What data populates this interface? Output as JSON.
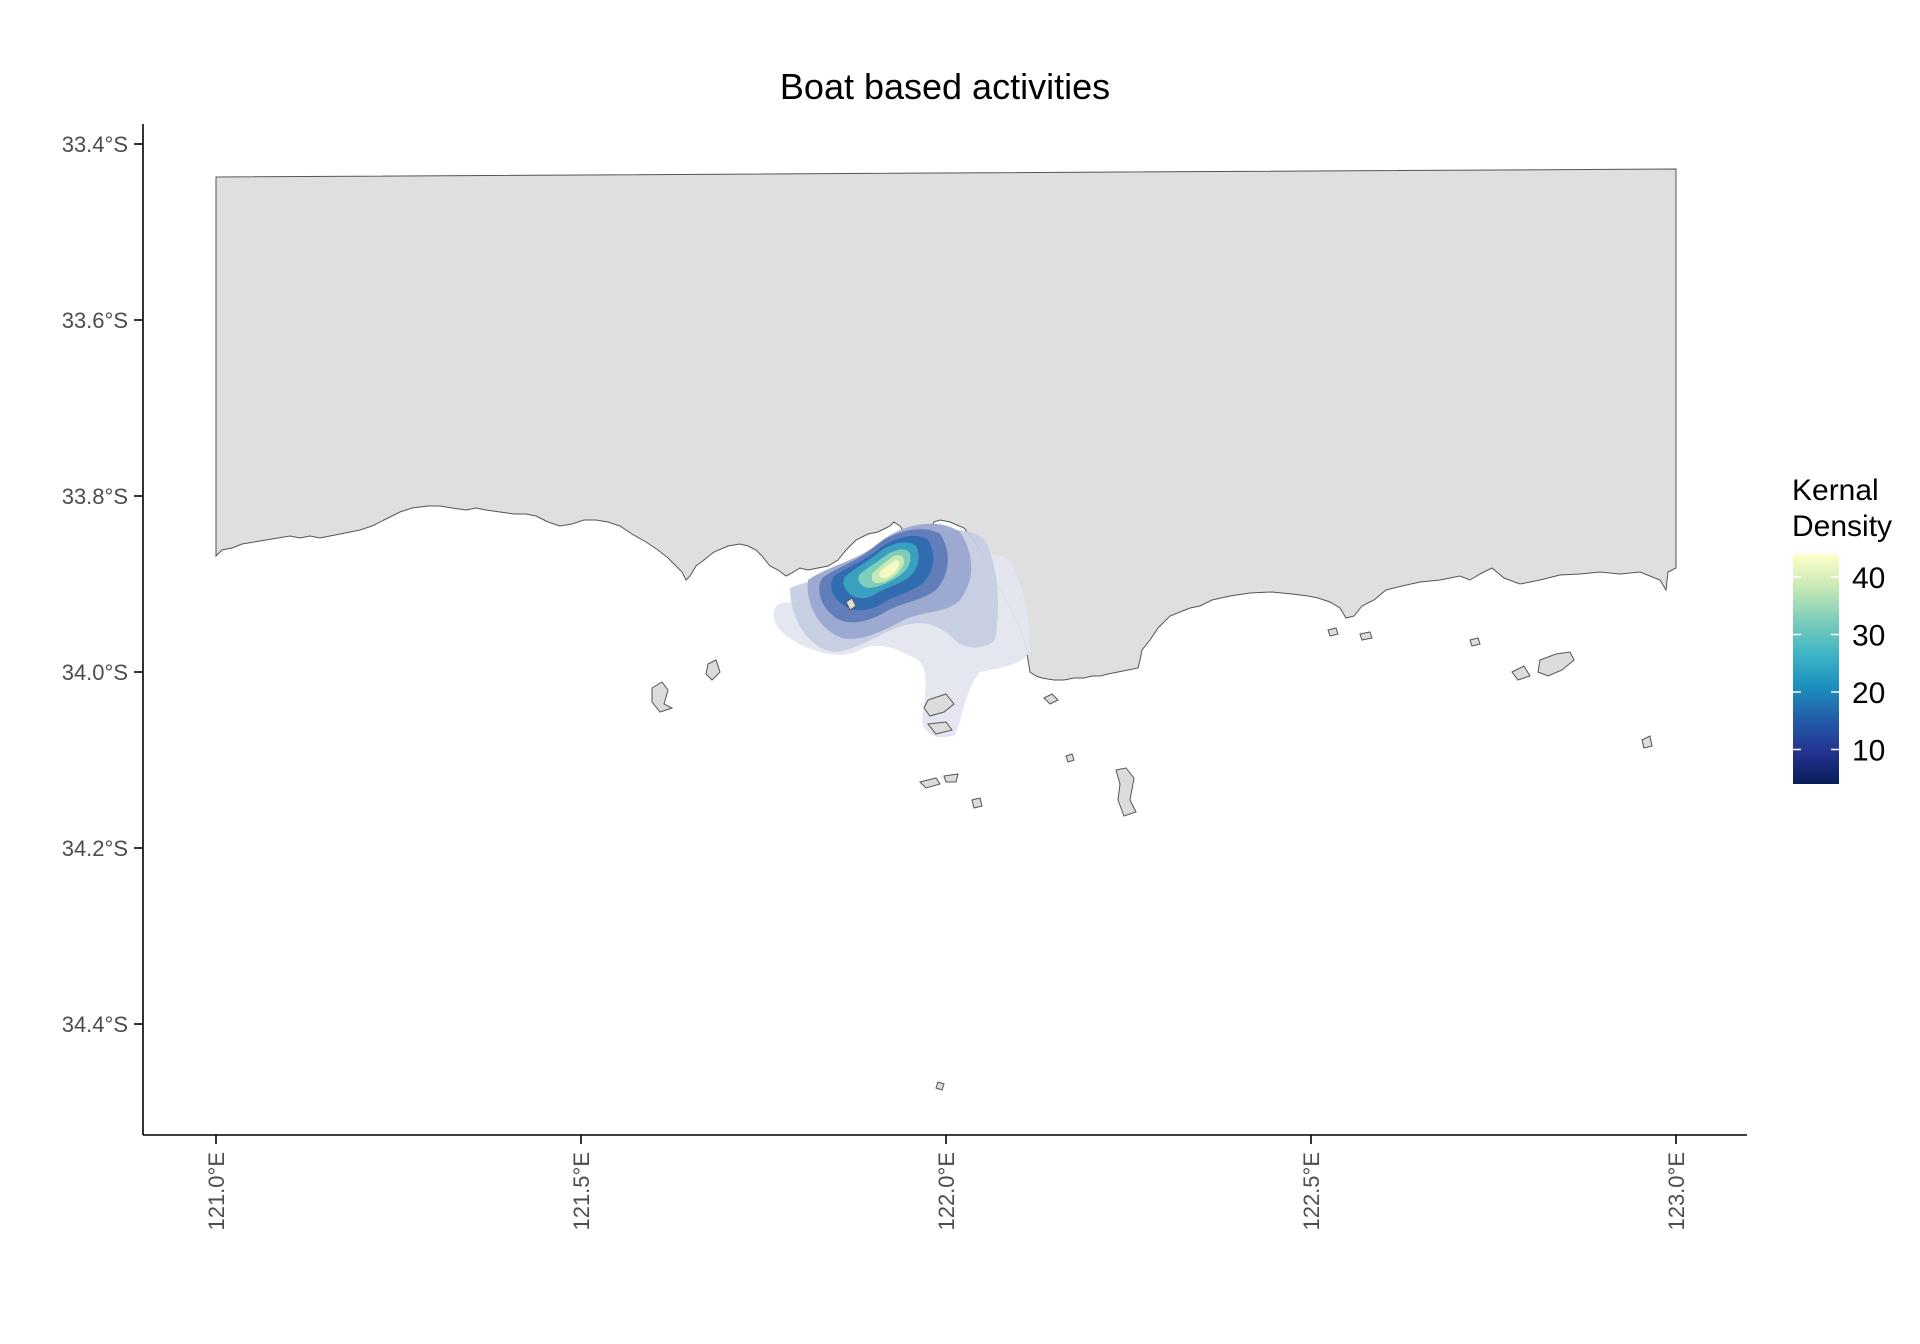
{
  "title": "Boat based activities",
  "map": {
    "land_color": "#dfdfdf",
    "coast_color": "#555555",
    "xlim": [
      121.0,
      123.0
    ],
    "ylim_south": [
      33.4,
      34.4
    ],
    "x_ticks": [
      {
        "value": 121.0,
        "label": "121.0°E"
      },
      {
        "value": 121.5,
        "label": "121.5°E"
      },
      {
        "value": 122.0,
        "label": "122.0°E"
      },
      {
        "value": 122.5,
        "label": "122.5°E"
      },
      {
        "value": 123.0,
        "label": "123.0°E"
      }
    ],
    "y_ticks": [
      {
        "value": 33.4,
        "label": "33.4°S"
      },
      {
        "value": 33.6,
        "label": "33.6°S"
      },
      {
        "value": 33.8,
        "label": "33.8°S"
      },
      {
        "value": 34.0,
        "label": "34.0°S"
      },
      {
        "value": 34.2,
        "label": "34.2°S"
      },
      {
        "value": 34.4,
        "label": "34.4°S"
      }
    ],
    "density_hotspot": {
      "lon": 121.9,
      "lat": 33.9
    }
  },
  "legend": {
    "title_line1": "Kernal",
    "title_line2": "Density",
    "colorscale": [
      "#081d58",
      "#253494",
      "#225ea8",
      "#1d91c0",
      "#41b6c4",
      "#7fcdbb",
      "#c7e9b4",
      "#ffffcc"
    ],
    "range": [
      4,
      44
    ],
    "ticks": [
      {
        "value": 40,
        "label": "40"
      },
      {
        "value": 30,
        "label": "30"
      },
      {
        "value": 20,
        "label": "20"
      },
      {
        "value": 10,
        "label": "10"
      }
    ]
  }
}
